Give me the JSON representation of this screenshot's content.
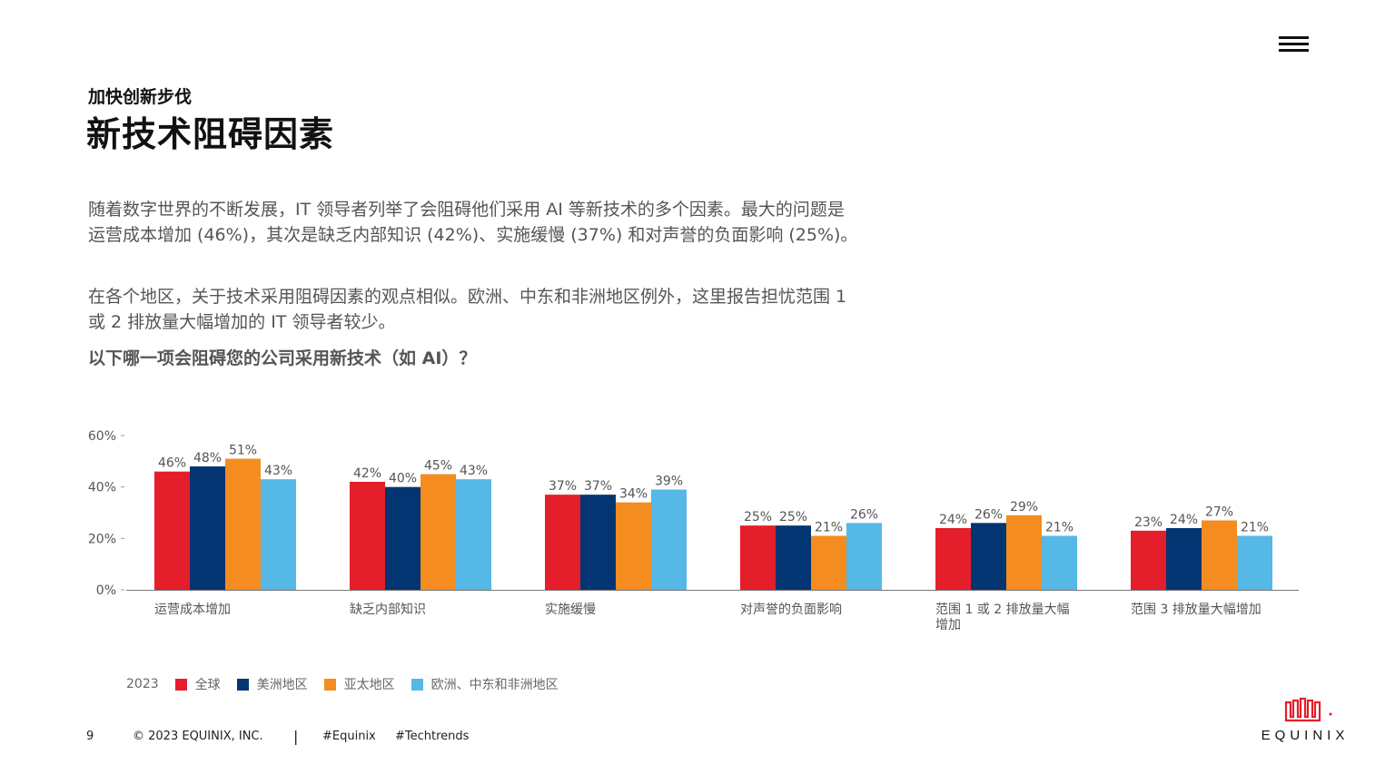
{
  "header": {
    "eyebrow": "加快创新步伐",
    "title": "新技术阻碍因素"
  },
  "body": {
    "paragraph1": "随着数字世界的不断发展，IT 领导者列举了会阻碍他们采用 AI 等新技术的多个因素。最大的问题是运营成本增加 (46%)，其次是缺乏内部知识 (42%)、实施缓慢 (37%) 和对声誉的负面影响 (25%)。",
    "paragraph2": "在各个地区，关于技术采用阻碍因素的观点相似。欧洲、中东和非洲地区例外，这里报告担忧范围 1 或 2 排放量大幅增加的 IT 领导者较少。",
    "question": "以下哪一项会阻碍您的公司采用新技术（如 AI）？"
  },
  "chart_data": {
    "type": "bar",
    "title": "",
    "xlabel": "",
    "ylabel": "",
    "ylim": [
      0,
      60
    ],
    "yticks": [
      "0%",
      "20%",
      "40%",
      "60%"
    ],
    "categories": [
      "运营成本增加",
      "缺乏内部知识",
      "实施缓慢",
      "对声誉的负面影响",
      "范围 1 或 2 排放量大幅增加",
      "范围 3 排放量大幅增加"
    ],
    "category_lines": [
      [
        "运营成本增加"
      ],
      [
        "缺乏内部知识"
      ],
      [
        "实施缓慢"
      ],
      [
        "对声誉的负面影响"
      ],
      [
        "范围 1 或 2 排放量大幅",
        "增加"
      ],
      [
        "范围 3 排放量大幅增加"
      ]
    ],
    "series": [
      {
        "name": "全球",
        "color": "#e41e2b",
        "values": [
          46,
          42,
          37,
          25,
          24,
          23
        ]
      },
      {
        "name": "美洲地区",
        "color": "#033572",
        "values": [
          48,
          40,
          37,
          25,
          26,
          24
        ]
      },
      {
        "name": "亚太地区",
        "color": "#f48c1f",
        "values": [
          51,
          45,
          34,
          21,
          29,
          27
        ]
      },
      {
        "name": "欧洲、中东和非洲地区",
        "color": "#55b8e7",
        "values": [
          43,
          43,
          39,
          26,
          21,
          21
        ]
      }
    ],
    "legend_year": "2023",
    "legend_position": "bottom-left",
    "grid": false,
    "value_suffix": "%"
  },
  "footer": {
    "page": "9",
    "copyright": "© 2023 EQUINIX, INC.",
    "divider": "|",
    "tag1": "#Equinix",
    "tag2": "#Techtrends"
  },
  "logo": {
    "text": "EQUINIX",
    "color": "#e41e2b"
  },
  "icons": {
    "menu": "hamburger-menu-icon"
  }
}
